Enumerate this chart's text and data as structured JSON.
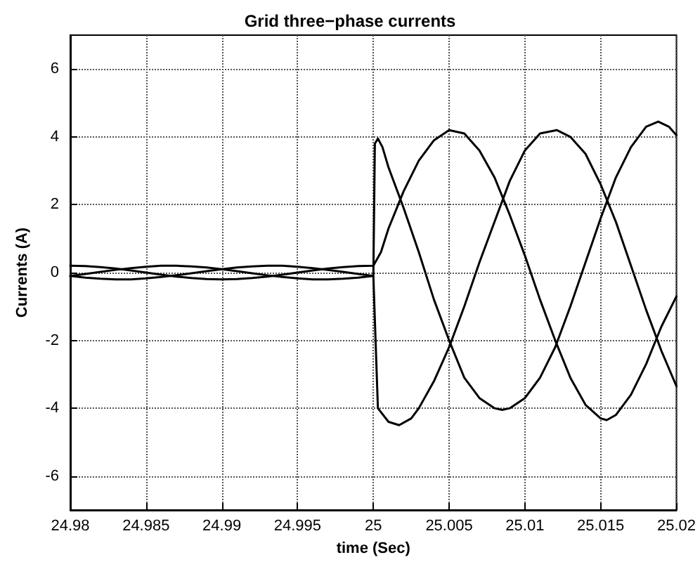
{
  "chart_data": {
    "type": "line",
    "title": "Grid three−phase currents",
    "xlabel": "time (Sec)",
    "ylabel": "Currents (A)",
    "xlim": [
      24.98,
      25.02
    ],
    "xticks": [
      24.98,
      24.985,
      24.99,
      24.995,
      25,
      25.005,
      25.01,
      25.015,
      25.02
    ],
    "ylim": [
      -7,
      7
    ],
    "yticks": [
      -6,
      -4,
      -2,
      0,
      2,
      4,
      6
    ],
    "grid": true,
    "marker": "none",
    "line_style": "solid",
    "series": [
      {
        "color": "#000000",
        "x": [
          24.98,
          24.981,
          24.982,
          24.983,
          24.984,
          24.985,
          24.986,
          24.987,
          24.988,
          24.989,
          24.99,
          24.991,
          24.992,
          24.993,
          24.994,
          24.995,
          24.996,
          24.997,
          24.998,
          24.999,
          25,
          25.0001,
          25.0003,
          25.0006,
          25.001,
          25.002,
          25.003,
          25.004,
          25.005,
          25.006,
          25.007,
          25.008,
          25.0085,
          25.009,
          25.01,
          25.011,
          25.012,
          25.013,
          25.014,
          25.015,
          25.016,
          25.017,
          25.018,
          25.0188,
          25.0195,
          25.02
        ],
        "values": [
          -0.1,
          -0.04,
          0.02,
          0.08,
          0.13,
          0.17,
          0.2,
          0.2,
          0.18,
          0.15,
          0.1,
          0.04,
          -0.02,
          -0.08,
          -0.13,
          -0.17,
          -0.2,
          -0.2,
          -0.18,
          -0.15,
          -0.1,
          3.8,
          3.95,
          3.7,
          3.1,
          1.9,
          0.6,
          -0.8,
          -2.0,
          -3.1,
          -3.7,
          -4.0,
          -4.05,
          -4.0,
          -3.7,
          -3.1,
          -2.2,
          -1.0,
          0.3,
          1.6,
          2.8,
          3.7,
          4.3,
          4.45,
          4.3,
          4.05
        ]
      },
      {
        "color": "#000000",
        "x": [
          24.98,
          24.981,
          24.982,
          24.983,
          24.984,
          24.985,
          24.986,
          24.987,
          24.988,
          24.989,
          24.99,
          24.991,
          24.992,
          24.993,
          24.994,
          24.995,
          24.996,
          24.997,
          24.998,
          24.999,
          25,
          25.0005,
          25.001,
          25.002,
          25.003,
          25.004,
          25.005,
          25.006,
          25.007,
          25.008,
          25.009,
          25.01,
          25.011,
          25.012,
          25.013,
          25.014,
          25.015,
          25.0154,
          25.016,
          25.017,
          25.018,
          25.019,
          25.02
        ],
        "values": [
          0.2,
          0.19,
          0.16,
          0.12,
          0.06,
          0,
          -0.06,
          -0.12,
          -0.16,
          -0.19,
          -0.2,
          -0.19,
          -0.16,
          -0.12,
          -0.06,
          0,
          0.06,
          0.12,
          0.16,
          0.19,
          0.2,
          0.6,
          1.3,
          2.4,
          3.3,
          3.9,
          4.2,
          4.1,
          3.6,
          2.8,
          1.7,
          0.5,
          -0.8,
          -2.0,
          -3.1,
          -3.9,
          -4.3,
          -4.35,
          -4.2,
          -3.6,
          -2.7,
          -1.6,
          -0.7
        ]
      },
      {
        "color": "#000000",
        "x": [
          24.98,
          24.981,
          24.982,
          24.983,
          24.984,
          24.985,
          24.986,
          24.987,
          24.988,
          24.989,
          24.99,
          24.991,
          24.992,
          24.993,
          24.994,
          24.995,
          24.996,
          24.997,
          24.998,
          24.999,
          25,
          25.0003,
          25.001,
          25.0017,
          25.0025,
          25.003,
          25.004,
          25.005,
          25.006,
          25.007,
          25.008,
          25.009,
          25.01,
          25.011,
          25.0121,
          25.013,
          25.014,
          25.015,
          25.016,
          25.017,
          25.018,
          25.019,
          25.02
        ],
        "values": [
          -0.1,
          -0.15,
          -0.18,
          -0.2,
          -0.2,
          -0.17,
          -0.13,
          -0.08,
          -0.02,
          0.04,
          0.1,
          0.15,
          0.18,
          0.2,
          0.2,
          0.17,
          0.13,
          0.08,
          0.02,
          -0.04,
          -0.1,
          -4.0,
          -4.4,
          -4.5,
          -4.3,
          -4.0,
          -3.2,
          -2.2,
          -1.0,
          0.3,
          1.5,
          2.7,
          3.6,
          4.1,
          4.2,
          4.0,
          3.5,
          2.6,
          1.5,
          0.2,
          -1.1,
          -2.3,
          -3.35
        ]
      }
    ]
  }
}
